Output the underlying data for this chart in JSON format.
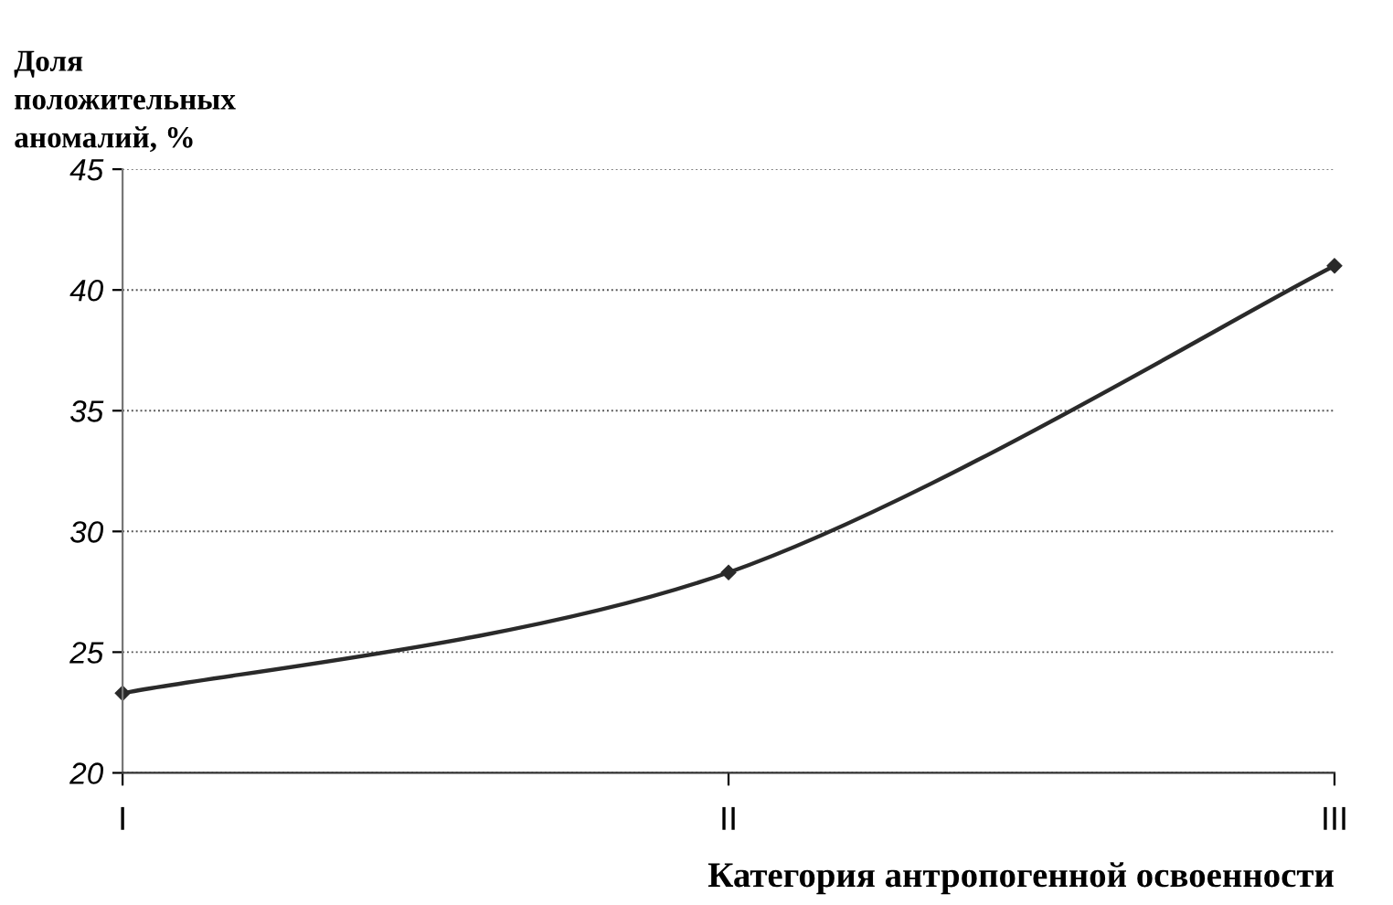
{
  "chart_data": {
    "type": "line",
    "ylabel": "Доля\nположительных\nаномалий, %",
    "xlabel": "Категория антропогенной освоенности",
    "categories": [
      "I",
      "II",
      "III"
    ],
    "series": [
      {
        "color": "#2a2a2a",
        "values": [
          23.3,
          28.3,
          41.0
        ]
      }
    ],
    "ylim": [
      20,
      45
    ],
    "yticks": [
      20,
      25,
      30,
      35,
      40,
      45
    ],
    "grid": "y",
    "marker": "diamond",
    "line_style": "solid"
  }
}
